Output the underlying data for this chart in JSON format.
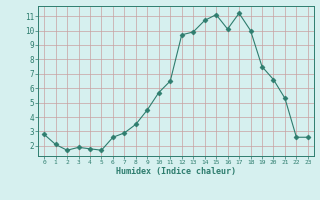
{
  "title": "",
  "xlabel": "Humidex (Indice chaleur)",
  "ylabel": "",
  "x": [
    0,
    1,
    2,
    3,
    4,
    5,
    6,
    7,
    8,
    9,
    10,
    11,
    12,
    13,
    14,
    15,
    16,
    17,
    18,
    19,
    20,
    21,
    22,
    23
  ],
  "y": [
    2.8,
    2.1,
    1.7,
    1.9,
    1.8,
    1.7,
    2.6,
    2.9,
    3.5,
    4.5,
    5.7,
    6.5,
    9.7,
    9.9,
    10.7,
    11.1,
    10.1,
    11.2,
    10.0,
    7.5,
    6.6,
    5.3,
    2.6,
    2.6
  ],
  "line_color": "#2e7d6e",
  "marker": "D",
  "marker_size": 2.5,
  "bg_color": "#d6f0ef",
  "grid_color": "#c8a0a0",
  "text_color": "#2e7d6e",
  "xlim": [
    -0.5,
    23.5
  ],
  "ylim": [
    1.3,
    11.7
  ],
  "yticks": [
    2,
    3,
    4,
    5,
    6,
    7,
    8,
    9,
    10,
    11
  ],
  "xticks": [
    0,
    1,
    2,
    3,
    4,
    5,
    6,
    7,
    8,
    9,
    10,
    11,
    12,
    13,
    14,
    15,
    16,
    17,
    18,
    19,
    20,
    21,
    22,
    23
  ]
}
